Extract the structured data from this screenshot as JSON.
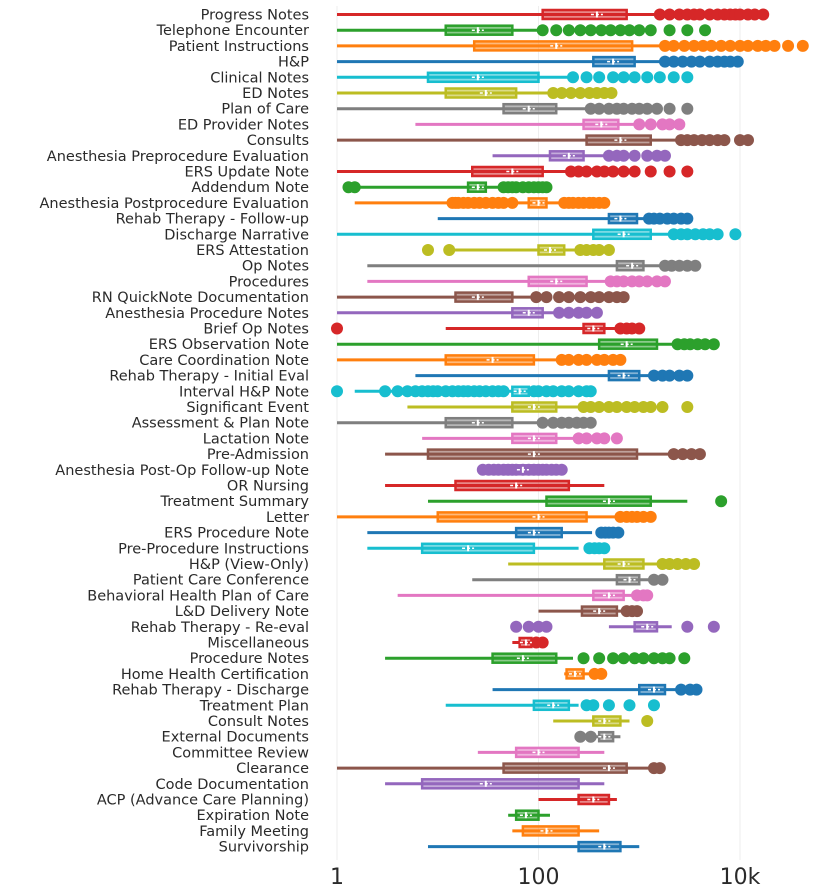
{
  "chart_data": {
    "type": "box",
    "orientation": "horizontal",
    "x_scale": "log10",
    "xlim": [
      1,
      40000
    ],
    "x_ticks": [
      {
        "value": 1,
        "label": "1"
      },
      {
        "value": 100,
        "label": "100"
      },
      {
        "value": 10000,
        "label": "10k"
      }
    ],
    "series": [
      {
        "name": "Progress Notes",
        "color": "#d62728",
        "min": 1,
        "q1": 110,
        "median": 380,
        "q3": 750,
        "wmax": 1500,
        "outliers": [
          1600,
          2000,
          2500,
          3000,
          3500,
          4000,
          5000,
          6000,
          7000,
          8000,
          9000,
          10000,
          12000,
          14000,
          17000
        ]
      },
      {
        "name": "Telephone Encounter",
        "color": "#2ca02c",
        "min": 1,
        "q1": 12,
        "median": 25,
        "q3": 55,
        "wmax": 100,
        "outliers": [
          110,
          150,
          200,
          260,
          330,
          420,
          520,
          650,
          800,
          1000,
          1300,
          2000,
          3000,
          4500
        ]
      },
      {
        "name": "Patient Instructions",
        "color": "#ff7f0e",
        "min": 1,
        "q1": 23,
        "median": 150,
        "q3": 850,
        "wmax": 1600,
        "outliers": [
          1800,
          2200,
          2800,
          3500,
          4300,
          5200,
          6500,
          8000,
          10000,
          12000,
          15000,
          18000,
          22000,
          30000,
          42000
        ]
      },
      {
        "name": "H&P",
        "color": "#1f77b4",
        "min": 1,
        "q1": 350,
        "median": 550,
        "q3": 900,
        "wmax": 1600,
        "outliers": [
          1800,
          2200,
          2700,
          3300,
          4000,
          5000,
          6000,
          7000,
          8000,
          9500
        ]
      },
      {
        "name": "Clinical Notes",
        "color": "#17becf",
        "min": 1,
        "q1": 8,
        "median": 25,
        "q3": 100,
        "wmax": 200,
        "outliers": [
          220,
          300,
          400,
          550,
          700,
          900,
          1200,
          1600,
          2200,
          3000
        ]
      },
      {
        "name": "ED Notes",
        "color": "#bcbd22",
        "min": 1,
        "q1": 12,
        "median": 30,
        "q3": 60,
        "wmax": 130,
        "outliers": [
          140,
          170,
          210,
          260,
          320,
          380,
          450,
          530
        ]
      },
      {
        "name": "Plan of Care",
        "color": "#7f7f7f",
        "min": 1,
        "q1": 45,
        "median": 80,
        "q3": 150,
        "wmax": 300,
        "outliers": [
          330,
          400,
          500,
          600,
          700,
          850,
          1000,
          1200,
          1500,
          2000,
          3000
        ]
      },
      {
        "name": "ED Provider Notes",
        "color": "#e377c2",
        "min": 6,
        "q1": 280,
        "median": 420,
        "q3": 620,
        "wmax": 900,
        "outliers": [
          1000,
          1300,
          1700,
          2000,
          2500
        ]
      },
      {
        "name": "Consults",
        "color": "#8c564b",
        "min": 1,
        "q1": 300,
        "median": 650,
        "q3": 1300,
        "wmax": 2400,
        "outliers": [
          2600,
          3000,
          3500,
          4200,
          5000,
          6000,
          7000,
          10000,
          12000
        ]
      },
      {
        "name": "Anesthesia Preprocedure Evaluation",
        "color": "#9467bd",
        "min": 35,
        "q1": 130,
        "median": 200,
        "q3": 280,
        "wmax": 480,
        "outliers": [
          500,
          600,
          700,
          900,
          1200,
          1500,
          1800
        ]
      },
      {
        "name": "ERS Update Note",
        "color": "#d62728",
        "min": 1,
        "q1": 22,
        "median": 55,
        "q3": 110,
        "wmax": 190,
        "outliers": [
          210,
          250,
          300,
          380,
          450,
          550,
          700,
          900,
          1300,
          2000,
          3000
        ]
      },
      {
        "name": "Addendum Note",
        "color": "#2ca02c",
        "min": 1.2,
        "q1": 20,
        "median": 25,
        "q3": 30,
        "wmax": 40,
        "outliers": [
          1.3,
          1.5,
          45,
          50,
          55,
          60,
          70,
          80,
          90,
          100,
          110,
          120
        ]
      },
      {
        "name": "Anesthesia Postprocedure Evaluation",
        "color": "#ff7f0e",
        "min": 1.5,
        "q1": 80,
        "median": 100,
        "q3": 120,
        "wmax": 170,
        "outliers": [
          14,
          15,
          16,
          18,
          20,
          23,
          26,
          30,
          35,
          40,
          45,
          55,
          180,
          200,
          220,
          250,
          280,
          320,
          350,
          400,
          450
        ]
      },
      {
        "name": "Rehab Therapy - Follow-up",
        "color": "#1f77b4",
        "min": 10,
        "q1": 500,
        "median": 650,
        "q3": 950,
        "wmax": 1200,
        "outliers": [
          1250,
          1400,
          1600,
          1900,
          2200,
          2600,
          3000
        ]
      },
      {
        "name": "Discharge Narrative",
        "color": "#17becf",
        "min": 1,
        "q1": 350,
        "median": 700,
        "q3": 1300,
        "wmax": 2000,
        "outliers": [
          2200,
          2600,
          3000,
          3600,
          4300,
          5000,
          6000,
          9000
        ]
      },
      {
        "name": "ERS Attestation",
        "color": "#bcbd22",
        "min": 14,
        "q1": 100,
        "median": 130,
        "q3": 180,
        "wmax": 240,
        "outliers": [
          8,
          13,
          260,
          300,
          350,
          400,
          500
        ]
      },
      {
        "name": "Op Notes",
        "color": "#7f7f7f",
        "min": 2,
        "q1": 600,
        "median": 850,
        "q3": 1100,
        "wmax": 1700,
        "outliers": [
          1800,
          2100,
          2500,
          3000,
          3600
        ]
      },
      {
        "name": "Procedures",
        "color": "#e377c2",
        "min": 2,
        "q1": 80,
        "median": 150,
        "q3": 300,
        "wmax": 500,
        "outliers": [
          520,
          600,
          700,
          850,
          1000,
          1200,
          1500,
          1800
        ]
      },
      {
        "name": "RN QuickNote Documentation",
        "color": "#8c564b",
        "min": 1,
        "q1": 15,
        "median": 25,
        "q3": 55,
        "wmax": 90,
        "outliers": [
          95,
          120,
          160,
          200,
          260,
          330,
          400,
          500,
          600,
          700
        ]
      },
      {
        "name": "Anesthesia Procedure Notes",
        "color": "#9467bd",
        "min": 1,
        "q1": 55,
        "median": 80,
        "q3": 110,
        "wmax": 150,
        "outliers": [
          160,
          200,
          250,
          300,
          380
        ]
      },
      {
        "name": "Brief Op Notes",
        "color": "#d62728",
        "min": 12,
        "q1": 280,
        "median": 350,
        "q3": 450,
        "wmax": 600,
        "outliers": [
          1,
          650,
          750,
          850,
          1000
        ]
      },
      {
        "name": "ERS Observation Note",
        "color": "#2ca02c",
        "min": 1,
        "q1": 400,
        "median": 750,
        "q3": 1500,
        "wmax": 2200,
        "outliers": [
          2400,
          2800,
          3200,
          3800,
          4500,
          5500
        ]
      },
      {
        "name": "Care Coordination Note",
        "color": "#ff7f0e",
        "min": 1,
        "q1": 12,
        "median": 35,
        "q3": 90,
        "wmax": 160,
        "outliers": [
          170,
          200,
          250,
          300,
          380,
          450,
          550,
          650
        ]
      },
      {
        "name": "Rehab Therapy - Initial Eval",
        "color": "#1f77b4",
        "min": 6,
        "q1": 500,
        "median": 700,
        "q3": 1000,
        "wmax": 1300,
        "outliers": [
          1400,
          1700,
          2000,
          2500,
          3000
        ]
      },
      {
        "name": "Interval H&P Note",
        "color": "#17becf",
        "min": 1.5,
        "q1": 55,
        "median": 65,
        "q3": 80,
        "wmax": 140,
        "outliers": [
          1,
          3,
          4,
          5,
          6,
          7,
          8,
          9,
          10,
          12,
          14,
          16,
          18,
          20,
          23,
          26,
          30,
          35,
          40,
          45,
          90,
          100,
          120,
          140,
          170,
          200,
          250,
          300,
          330
        ]
      },
      {
        "name": "Significant Event",
        "color": "#bcbd22",
        "min": 5,
        "q1": 55,
        "median": 90,
        "q3": 150,
        "wmax": 260,
        "outliers": [
          280,
          330,
          400,
          500,
          600,
          750,
          900,
          1100,
          1300,
          1700,
          3000
        ]
      },
      {
        "name": "Assessment & Plan Note",
        "color": "#7f7f7f",
        "min": 1,
        "q1": 12,
        "median": 25,
        "q3": 55,
        "wmax": 100,
        "outliers": [
          110,
          140,
          170,
          200,
          240,
          280,
          330
        ]
      },
      {
        "name": "Lactation Note",
        "color": "#e377c2",
        "min": 7,
        "q1": 55,
        "median": 90,
        "q3": 150,
        "wmax": 230,
        "outliers": [
          250,
          300,
          380,
          450,
          600
        ]
      },
      {
        "name": "Pre-Admission",
        "color": "#8c564b",
        "min": 3,
        "q1": 8,
        "median": 90,
        "q3": 950,
        "wmax": 2000,
        "outliers": [
          2200,
          2700,
          3300,
          4000
        ]
      },
      {
        "name": "Anesthesia Post-Op Follow-up Note",
        "color": "#9467bd",
        "min": 28,
        "q1": 45,
        "median": 70,
        "q3": 100,
        "wmax": 120,
        "outliers": [
          28,
          32,
          36,
          40,
          45,
          50,
          55,
          60,
          70,
          80,
          90,
          100,
          110,
          120,
          135,
          150,
          170
        ]
      },
      {
        "name": "OR Nursing",
        "color": "#d62728",
        "min": 3,
        "q1": 15,
        "median": 60,
        "q3": 200,
        "wmax": 450
      },
      {
        "name": "Treatment Summary",
        "color": "#2ca02c",
        "min": 8,
        "q1": 120,
        "median": 500,
        "q3": 1300,
        "wmax": 3000,
        "outliers": [
          6500
        ]
      },
      {
        "name": "Letter",
        "color": "#ff7f0e",
        "min": 1,
        "q1": 10,
        "median": 100,
        "q3": 300,
        "wmax": 600,
        "outliers": [
          650,
          750,
          850,
          950,
          1100,
          1300
        ]
      },
      {
        "name": "ERS Procedure Note",
        "color": "#1f77b4",
        "min": 2,
        "q1": 60,
        "median": 90,
        "q3": 170,
        "wmax": 340,
        "outliers": [
          420,
          460,
          500,
          550,
          620
        ]
      },
      {
        "name": "Pre-Procedure Instructions",
        "color": "#17becf",
        "min": 2,
        "q1": 7,
        "median": 20,
        "q3": 90,
        "wmax": 250,
        "outliers": [
          320,
          360,
          400,
          450
        ]
      },
      {
        "name": "H&P (View-Only)",
        "color": "#bcbd22",
        "min": 50,
        "q1": 450,
        "median": 700,
        "q3": 1100,
        "wmax": 1600,
        "outliers": [
          1700,
          2000,
          2400,
          2900,
          3500
        ]
      },
      {
        "name": "Patient Care Conference",
        "color": "#7f7f7f",
        "min": 22,
        "q1": 600,
        "median": 800,
        "q3": 1000,
        "wmax": 1300,
        "outliers": [
          1400,
          1700
        ]
      },
      {
        "name": "Behavioral Health Plan of Care",
        "color": "#e377c2",
        "min": 4,
        "q1": 350,
        "median": 500,
        "q3": 700,
        "wmax": 900,
        "outliers": [
          950,
          1100,
          1200
        ]
      },
      {
        "name": "L&D Delivery Note",
        "color": "#8c564b",
        "min": 100,
        "q1": 270,
        "median": 400,
        "q3": 600,
        "wmax": 700,
        "outliers": [
          750,
          850,
          950
        ]
      },
      {
        "name": "Rehab Therapy - Re-eval",
        "color": "#9467bd",
        "min": 500,
        "q1": 900,
        "median": 1200,
        "q3": 1500,
        "wmax": 2100,
        "outliers": [
          60,
          80,
          100,
          120,
          3000,
          5500
        ]
      },
      {
        "name": "Miscellaneous",
        "color": "#d62728",
        "min": 55,
        "q1": 65,
        "median": 75,
        "q3": 85,
        "wmax": 90,
        "outliers": [
          95,
          110
        ]
      },
      {
        "name": "Procedure Notes",
        "color": "#2ca02c",
        "min": 3,
        "q1": 35,
        "median": 70,
        "q3": 150,
        "wmax": 220,
        "outliers": [
          280,
          400,
          550,
          700,
          900,
          1100,
          1400,
          1700,
          2000,
          2800
        ]
      },
      {
        "name": "Home Health Certification",
        "color": "#ff7f0e",
        "min": 180,
        "q1": 190,
        "median": 230,
        "q3": 280,
        "wmax": 330,
        "outliers": [
          360,
          420
        ]
      },
      {
        "name": "Rehab Therapy - Discharge",
        "color": "#1f77b4",
        "min": 35,
        "q1": 1000,
        "median": 1400,
        "q3": 1800,
        "wmax": 2300,
        "outliers": [
          2600,
          3200,
          3700
        ]
      },
      {
        "name": "Treatment Plan",
        "color": "#17becf",
        "min": 12,
        "q1": 90,
        "median": 140,
        "q3": 200,
        "wmax": 250,
        "outliers": [
          300,
          350,
          500,
          800,
          1400
        ]
      },
      {
        "name": "Consult Notes",
        "color": "#bcbd22",
        "min": 140,
        "q1": 350,
        "median": 450,
        "q3": 650,
        "wmax": 800,
        "outliers": [
          1200
        ]
      },
      {
        "name": "External Documents",
        "color": "#7f7f7f",
        "min": 300,
        "q1": 400,
        "median": 450,
        "q3": 550,
        "wmax": 650,
        "outliers": [
          260,
          330
        ]
      },
      {
        "name": "Committee Review",
        "color": "#e377c2",
        "min": 25,
        "q1": 60,
        "median": 100,
        "q3": 250,
        "wmax": 450
      },
      {
        "name": "Clearance",
        "color": "#8c564b",
        "min": 1,
        "q1": 45,
        "median": 500,
        "q3": 750,
        "wmax": 1300,
        "outliers": [
          1400,
          1600
        ]
      },
      {
        "name": "Code Documentation",
        "color": "#9467bd",
        "min": 3,
        "q1": 7,
        "median": 30,
        "q3": 250,
        "wmax": 450
      },
      {
        "name": "ACP (Advance Care Planning)",
        "color": "#d62728",
        "min": 100,
        "q1": 250,
        "median": 350,
        "q3": 500,
        "wmax": 600
      },
      {
        "name": "Expiration Note",
        "color": "#2ca02c",
        "min": 50,
        "q1": 60,
        "median": 75,
        "q3": 100,
        "wmax": 130
      },
      {
        "name": "Family Meeting",
        "color": "#ff7f0e",
        "min": 55,
        "q1": 70,
        "median": 120,
        "q3": 250,
        "wmax": 400
      },
      {
        "name": "Survivorship",
        "color": "#1f77b4",
        "min": 8,
        "q1": 250,
        "median": 450,
        "q3": 650,
        "wmax": 1000
      }
    ]
  }
}
